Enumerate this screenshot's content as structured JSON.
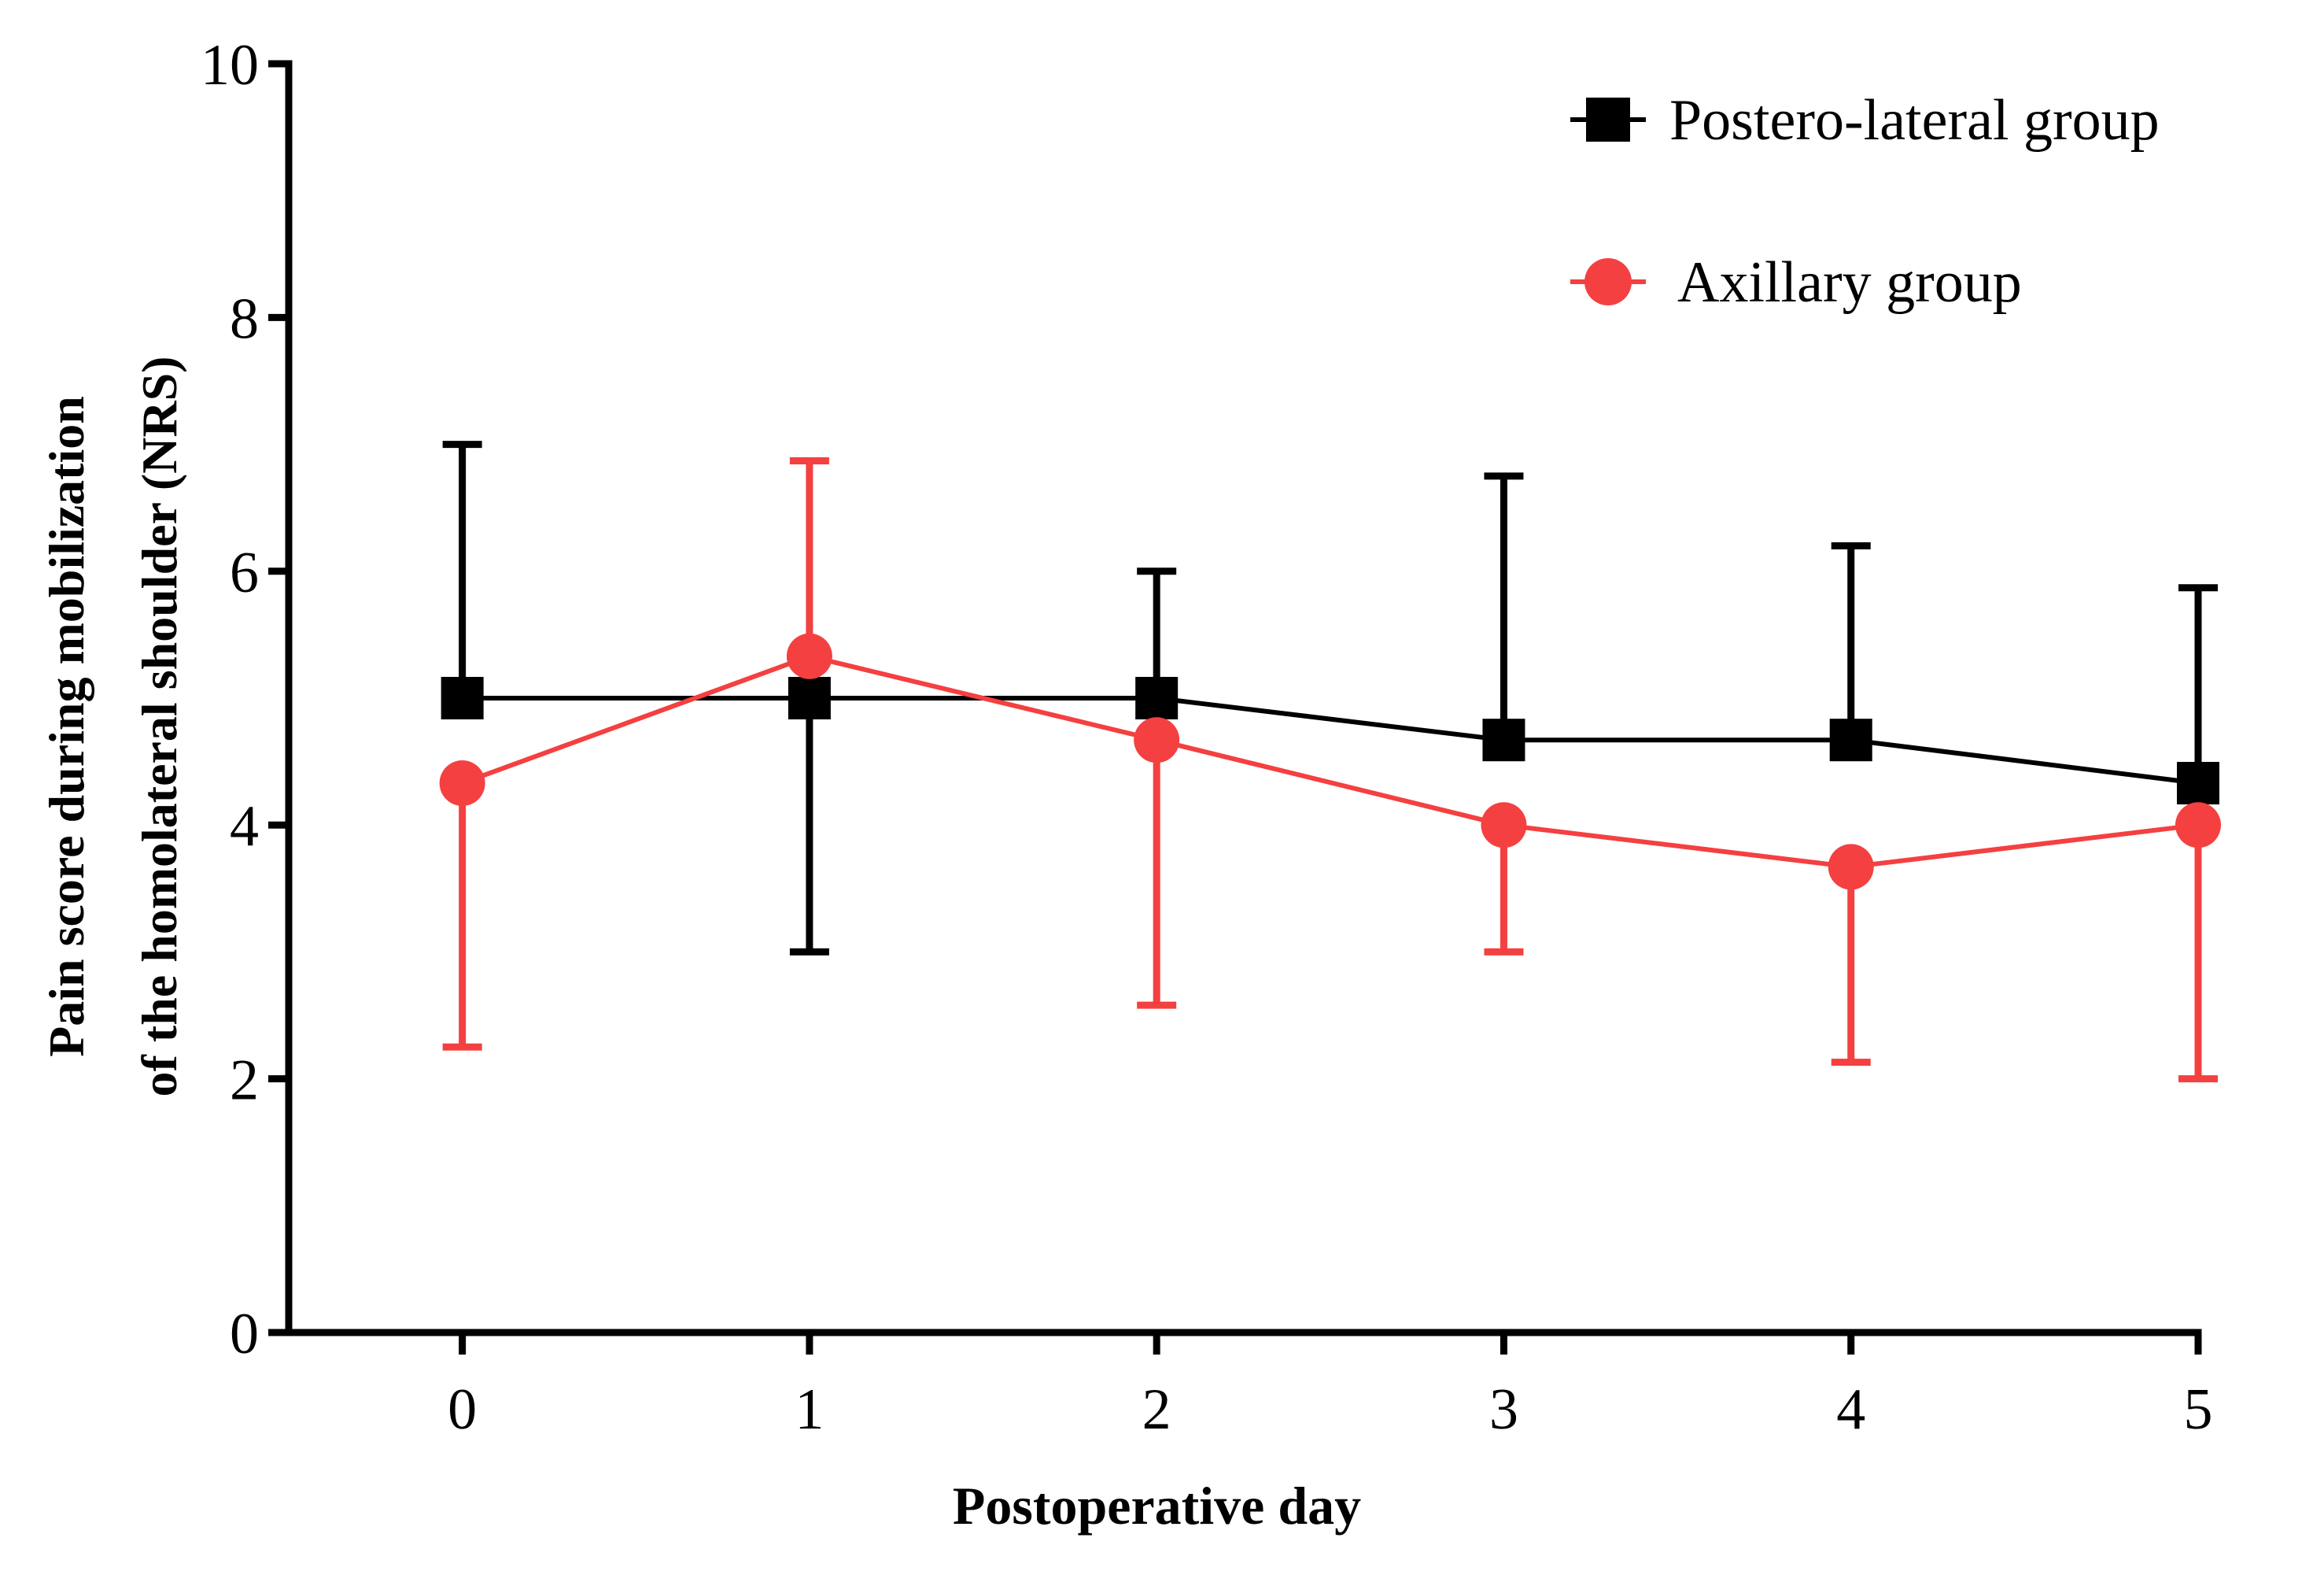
{
  "chart_data": {
    "type": "line",
    "title": "",
    "xlabel": "Postoperative day",
    "ylabel_lines": [
      "Pain score during mobilization",
      "of the homolateral shoulder (NRS)"
    ],
    "x": [
      0,
      1,
      2,
      3,
      4,
      5
    ],
    "xticks": [
      "0",
      "1",
      "2",
      "3",
      "4",
      "5"
    ],
    "xlim": [
      -0.5,
      5
    ],
    "ylim": [
      0,
      10
    ],
    "yticks": [
      "0",
      "2",
      "4",
      "6",
      "8",
      "10"
    ],
    "grid": false,
    "legend_position": "top-right",
    "series": [
      {
        "name": "Postero-lateral group",
        "marker": "square",
        "color": "#000000",
        "values": [
          5.0,
          5.0,
          5.0,
          4.67,
          4.67,
          4.33
        ],
        "error_upper": [
          7.0,
          5.0,
          6.0,
          6.75,
          6.2,
          5.87
        ],
        "error_lower": [
          5.0,
          3.0,
          5.0,
          4.67,
          4.67,
          4.33
        ]
      },
      {
        "name": "Axillary group",
        "marker": "circle",
        "color": "#f44040",
        "values": [
          4.33,
          5.33,
          4.67,
          4.0,
          3.67,
          4.0
        ],
        "error_upper": [
          4.33,
          6.87,
          4.67,
          4.0,
          3.67,
          4.0
        ],
        "error_lower": [
          2.25,
          5.33,
          2.58,
          3.0,
          2.13,
          2.0
        ]
      }
    ]
  }
}
